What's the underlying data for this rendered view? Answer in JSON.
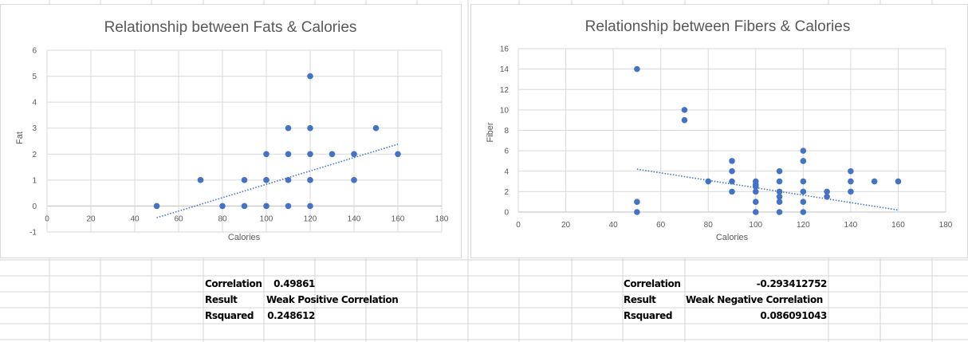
{
  "chart_data": [
    {
      "type": "scatter",
      "title": "Relationship between Fats & Calories",
      "xlabel": "Calories",
      "ylabel": "Fat",
      "xlim": [
        0,
        180
      ],
      "ylim": [
        -1,
        6
      ],
      "xticks": [
        0,
        20,
        40,
        60,
        80,
        100,
        120,
        140,
        160,
        180
      ],
      "yticks": [
        -1,
        0,
        1,
        2,
        3,
        4,
        5,
        6
      ],
      "grid": true,
      "marker_color": "#4472c4",
      "points": [
        [
          50,
          0
        ],
        [
          70,
          1
        ],
        [
          80,
          0
        ],
        [
          90,
          1
        ],
        [
          90,
          0
        ],
        [
          100,
          2
        ],
        [
          100,
          1
        ],
        [
          100,
          0
        ],
        [
          110,
          3
        ],
        [
          110,
          2
        ],
        [
          110,
          1
        ],
        [
          110,
          0
        ],
        [
          120,
          5
        ],
        [
          120,
          3
        ],
        [
          120,
          2
        ],
        [
          120,
          1
        ],
        [
          120,
          0
        ],
        [
          130,
          2
        ],
        [
          140,
          2
        ],
        [
          140,
          1
        ],
        [
          150,
          3
        ],
        [
          160,
          2
        ]
      ],
      "trendline": {
        "type": "linear",
        "style": "dotted",
        "from": [
          50,
          -0.45
        ],
        "to": [
          160,
          2.38
        ]
      }
    },
    {
      "type": "scatter",
      "title": "Relationship between Fibers & Calories",
      "xlabel": "Calories",
      "ylabel": "Fiber",
      "xlim": [
        0,
        180
      ],
      "ylim": [
        0,
        16
      ],
      "xticks": [
        0,
        20,
        40,
        60,
        80,
        100,
        120,
        140,
        160,
        180
      ],
      "yticks": [
        0,
        2,
        4,
        6,
        8,
        10,
        12,
        14,
        16
      ],
      "grid": true,
      "marker_color": "#4472c4",
      "points": [
        [
          50,
          14
        ],
        [
          50,
          1
        ],
        [
          50,
          0
        ],
        [
          70,
          10
        ],
        [
          70,
          9
        ],
        [
          80,
          3
        ],
        [
          90,
          5
        ],
        [
          90,
          4
        ],
        [
          90,
          3
        ],
        [
          90,
          2
        ],
        [
          100,
          3
        ],
        [
          100,
          2.7
        ],
        [
          100,
          2.5
        ],
        [
          100,
          2
        ],
        [
          100,
          1
        ],
        [
          100,
          0
        ],
        [
          110,
          4
        ],
        [
          110,
          3
        ],
        [
          110,
          2
        ],
        [
          110,
          1.5
        ],
        [
          110,
          1
        ],
        [
          110,
          0
        ],
        [
          120,
          6
        ],
        [
          120,
          5
        ],
        [
          120,
          3
        ],
        [
          120,
          2
        ],
        [
          120,
          1
        ],
        [
          120,
          0
        ],
        [
          130,
          2
        ],
        [
          130,
          1.5
        ],
        [
          140,
          4
        ],
        [
          140,
          3
        ],
        [
          140,
          2
        ],
        [
          150,
          3
        ],
        [
          160,
          3
        ]
      ],
      "trendline": {
        "type": "linear",
        "style": "dotted",
        "from": [
          50,
          4.2
        ],
        "to": [
          160,
          0.2
        ]
      }
    }
  ],
  "tables": {
    "fat": {
      "correlation_label": "Correlation",
      "correlation_value": "0.49861",
      "result_label": "Result",
      "result_value": "Weak Positive Correlation",
      "rsquared_label": "Rsquared",
      "rsquared_value": "0.248612"
    },
    "fiber": {
      "correlation_label": "Correlation",
      "correlation_value": "-0.293412752",
      "result_label": "Result",
      "result_value": "Weak Negative Correlation",
      "rsquared_label": "Rsquared",
      "rsquared_value": "0.086091043"
    }
  }
}
